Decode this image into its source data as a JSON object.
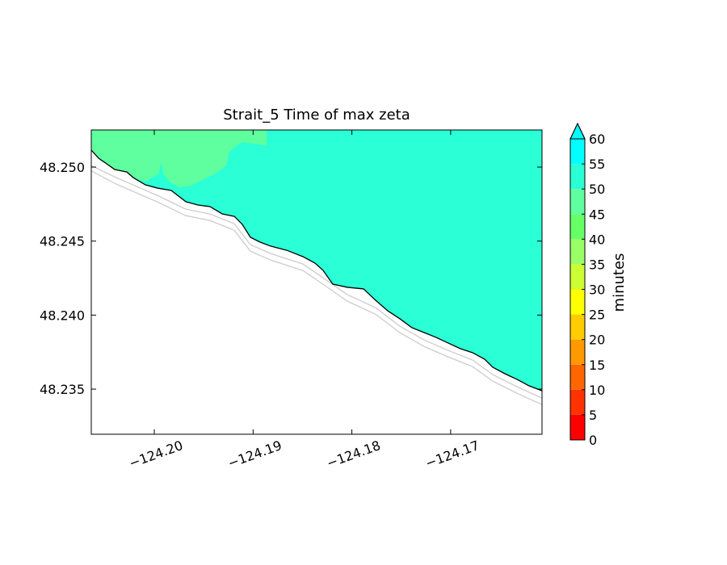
{
  "chart_data": {
    "type": "contourf",
    "title": "Strait_5 Time of max zeta",
    "xlim": [
      -124.20638,
      -124.16075
    ],
    "ylim": [
      48.23195,
      48.25251
    ],
    "xticks": [
      {
        "value": -124.2,
        "label": "−124.20"
      },
      {
        "value": -124.19,
        "label": "−124.19"
      },
      {
        "value": -124.18,
        "label": "−124.18"
      },
      {
        "value": -124.17,
        "label": "−124.17"
      }
    ],
    "yticks": [
      48.235,
      {
        "value": 48.24,
        "label": "48.240"
      },
      48.245,
      {
        "value": 48.25,
        "label": "48.250"
      }
    ],
    "regions": [
      {
        "level": 50,
        "x": [
          -124.16075,
          -124.20638,
          -124.20638,
          -124.20564,
          -124.20482,
          -124.20401,
          -124.20278,
          -124.20213,
          -124.2009,
          -124.19967,
          -124.19828,
          -124.19681,
          -124.19558,
          -124.19436,
          -124.19313,
          -124.1919,
          -124.19109,
          -124.19027,
          -124.18929,
          -124.18823,
          -124.18659,
          -124.18495,
          -124.18373,
          -124.18291,
          -124.18193,
          -124.18046,
          -124.17882,
          -124.1776,
          -124.17637,
          -124.17514,
          -124.17392,
          -124.17269,
          -124.17146,
          -124.17024,
          -124.16901,
          -124.16778,
          -124.16656,
          -124.16574,
          -124.16451,
          -124.16329,
          -124.16206,
          -124.16075
        ],
        "y": [
          48.25251,
          48.25251,
          48.25115,
          48.2506,
          48.25022,
          48.24984,
          48.24967,
          48.24929,
          48.2488,
          48.24858,
          48.24842,
          48.24766,
          48.24744,
          48.24733,
          48.24684,
          48.24667,
          48.24613,
          48.24526,
          48.24493,
          48.24466,
          48.24438,
          48.24395,
          48.24351,
          48.24302,
          48.24209,
          48.24188,
          48.24177,
          48.241,
          48.24029,
          48.23975,
          48.23915,
          48.23882,
          48.23849,
          48.23811,
          48.23773,
          48.23746,
          48.23702,
          48.23648,
          48.23604,
          48.23566,
          48.23522,
          48.23489
        ]
      },
      {
        "level": 45,
        "x": [
          -124.20638,
          -124.18863,
          -124.18863,
          -124.19109,
          -124.1919,
          -124.19248,
          -124.19272,
          -124.1937,
          -124.19501,
          -124.19632,
          -124.19747,
          -124.19845,
          -124.1991,
          -124.19926,
          -124.19959,
          -124.2009,
          -124.20213,
          -124.20278,
          -124.20401,
          -124.20482,
          -124.20564,
          -124.20638
        ],
        "y": [
          48.25251,
          48.25251,
          48.25147,
          48.25169,
          48.25136,
          48.25093,
          48.25011,
          48.24962,
          48.24918,
          48.24875,
          48.24864,
          48.24902,
          48.24956,
          48.25038,
          48.24956,
          48.24902,
          48.24929,
          48.24967,
          48.24984,
          48.25022,
          48.2506,
          48.25115
        ]
      }
    ],
    "lines": [
      {
        "color": "#cccccc",
        "x": [
          -124.20638,
          -124.20401,
          -124.20213,
          -124.19967,
          -124.19681,
          -124.19436,
          -124.1919,
          -124.19027,
          -124.18823,
          -124.18495,
          -124.18291,
          -124.18046,
          -124.1776,
          -124.17514,
          -124.17269,
          -124.17024,
          -124.16778,
          -124.16574,
          -124.16329,
          -124.16075
        ],
        "y": [
          48.2501,
          48.24934,
          48.24879,
          48.24808,
          48.24716,
          48.24683,
          48.24617,
          48.24476,
          48.24416,
          48.24345,
          48.24252,
          48.24138,
          48.2405,
          48.23925,
          48.23832,
          48.23761,
          48.23696,
          48.23598,
          48.23516,
          48.23439
        ]
      },
      {
        "color": "#cccccc",
        "x": [
          -124.20638,
          -124.20401,
          -124.20213,
          -124.19967,
          -124.19681,
          -124.19436,
          -124.1919,
          -124.19027,
          -124.18823,
          -124.18495,
          -124.18291,
          -124.18046,
          -124.1776,
          -124.17514,
          -124.17269,
          -124.17024,
          -124.16778,
          -124.16574,
          -124.16329,
          -124.16075
        ],
        "y": [
          48.24975,
          48.2489,
          48.24835,
          48.24764,
          48.24672,
          48.24639,
          48.24573,
          48.24432,
          48.24372,
          48.24301,
          48.24208,
          48.24094,
          48.24006,
          48.23881,
          48.23788,
          48.23717,
          48.23652,
          48.23554,
          48.23472,
          48.23395
        ]
      },
      {
        "color": "#000000",
        "x": [
          -124.20638,
          -124.20564,
          -124.20482,
          -124.20401,
          -124.20278,
          -124.20213,
          -124.2009,
          -124.19967,
          -124.19828,
          -124.19681,
          -124.19558,
          -124.19436,
          -124.19313,
          -124.1919,
          -124.19109,
          -124.19027,
          -124.18929,
          -124.18823,
          -124.18659,
          -124.18495,
          -124.18373,
          -124.18291,
          -124.18193,
          -124.18046,
          -124.17882,
          -124.1776,
          -124.17637,
          -124.17514,
          -124.17392,
          -124.17269,
          -124.17146,
          -124.17024,
          -124.16901,
          -124.16778,
          -124.16656,
          -124.16574,
          -124.16451,
          -124.16329,
          -124.16206,
          -124.16075
        ],
        "y": [
          48.25115,
          48.2506,
          48.25022,
          48.24984,
          48.24967,
          48.24929,
          48.2488,
          48.24858,
          48.24842,
          48.24766,
          48.24744,
          48.24733,
          48.24684,
          48.24667,
          48.24613,
          48.24526,
          48.24493,
          48.24466,
          48.24438,
          48.24395,
          48.24351,
          48.24302,
          48.24209,
          48.24188,
          48.24177,
          48.241,
          48.24029,
          48.23975,
          48.23915,
          48.23882,
          48.23849,
          48.23811,
          48.23773,
          48.23746,
          48.23702,
          48.23648,
          48.23604,
          48.23566,
          48.23522,
          48.23489
        ]
      }
    ],
    "colorbar": {
      "label": "minutes",
      "levels": [
        0,
        5,
        10,
        15,
        20,
        25,
        30,
        35,
        40,
        45,
        50,
        55,
        60
      ],
      "colors": [
        "#ff0000",
        "#ff3300",
        "#ff6600",
        "#ff9900",
        "#ffcc00",
        "#ffff00",
        "#ccff33",
        "#99ff66",
        "#66ff66",
        "#5fff9f",
        "#2affd5",
        "#00ffff"
      ],
      "extend": "max",
      "extend_color": "#00ffff"
    }
  }
}
